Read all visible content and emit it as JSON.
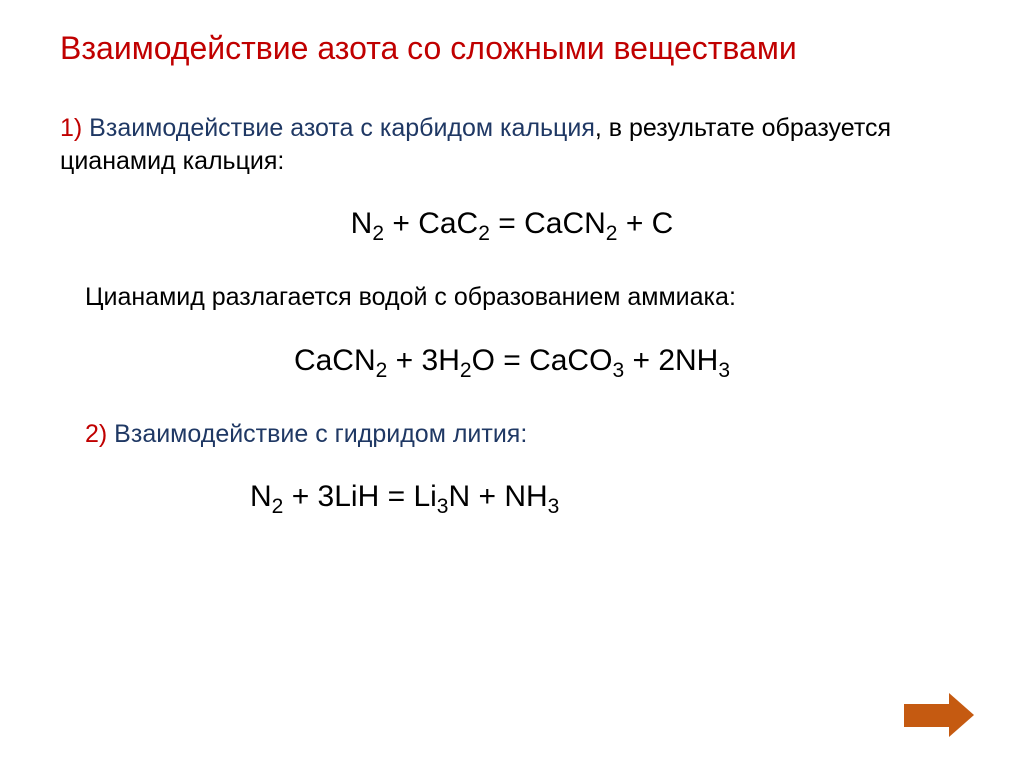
{
  "title": "Взаимодействие азота со сложными веществами",
  "section1": {
    "number": "1)",
    "subtitle": " Взаимодействие азота с карбидом кальция",
    "continuation": ", в результате образуется цианамид кальция:"
  },
  "equation1": {
    "parts": [
      "N",
      "2",
      " + CaC",
      "2",
      " = CaCN",
      "2",
      " + C"
    ]
  },
  "description1": "Цианамид разлагается водой с образованием аммиака:",
  "equation2": {
    "parts": [
      "CaCN",
      "2",
      " + 3H",
      "2",
      "O = CaCO",
      "3",
      " + 2NH",
      "3"
    ]
  },
  "section2": {
    "number": "2)",
    "subtitle": " Взаимодействие с гидридом лития:"
  },
  "equation3": {
    "parts": [
      "N",
      "2",
      " +  3LiH = Li",
      "3",
      "N + NH",
      "3"
    ]
  },
  "colors": {
    "title": "#c00000",
    "number": "#c00000",
    "subtitle": "#1f3864",
    "body": "#000000",
    "arrow": "#c55a11",
    "background": "#ffffff"
  },
  "typography": {
    "title_fontsize": 32,
    "section_fontsize": 25,
    "equation_fontsize": 30,
    "font_family": "Arial"
  }
}
